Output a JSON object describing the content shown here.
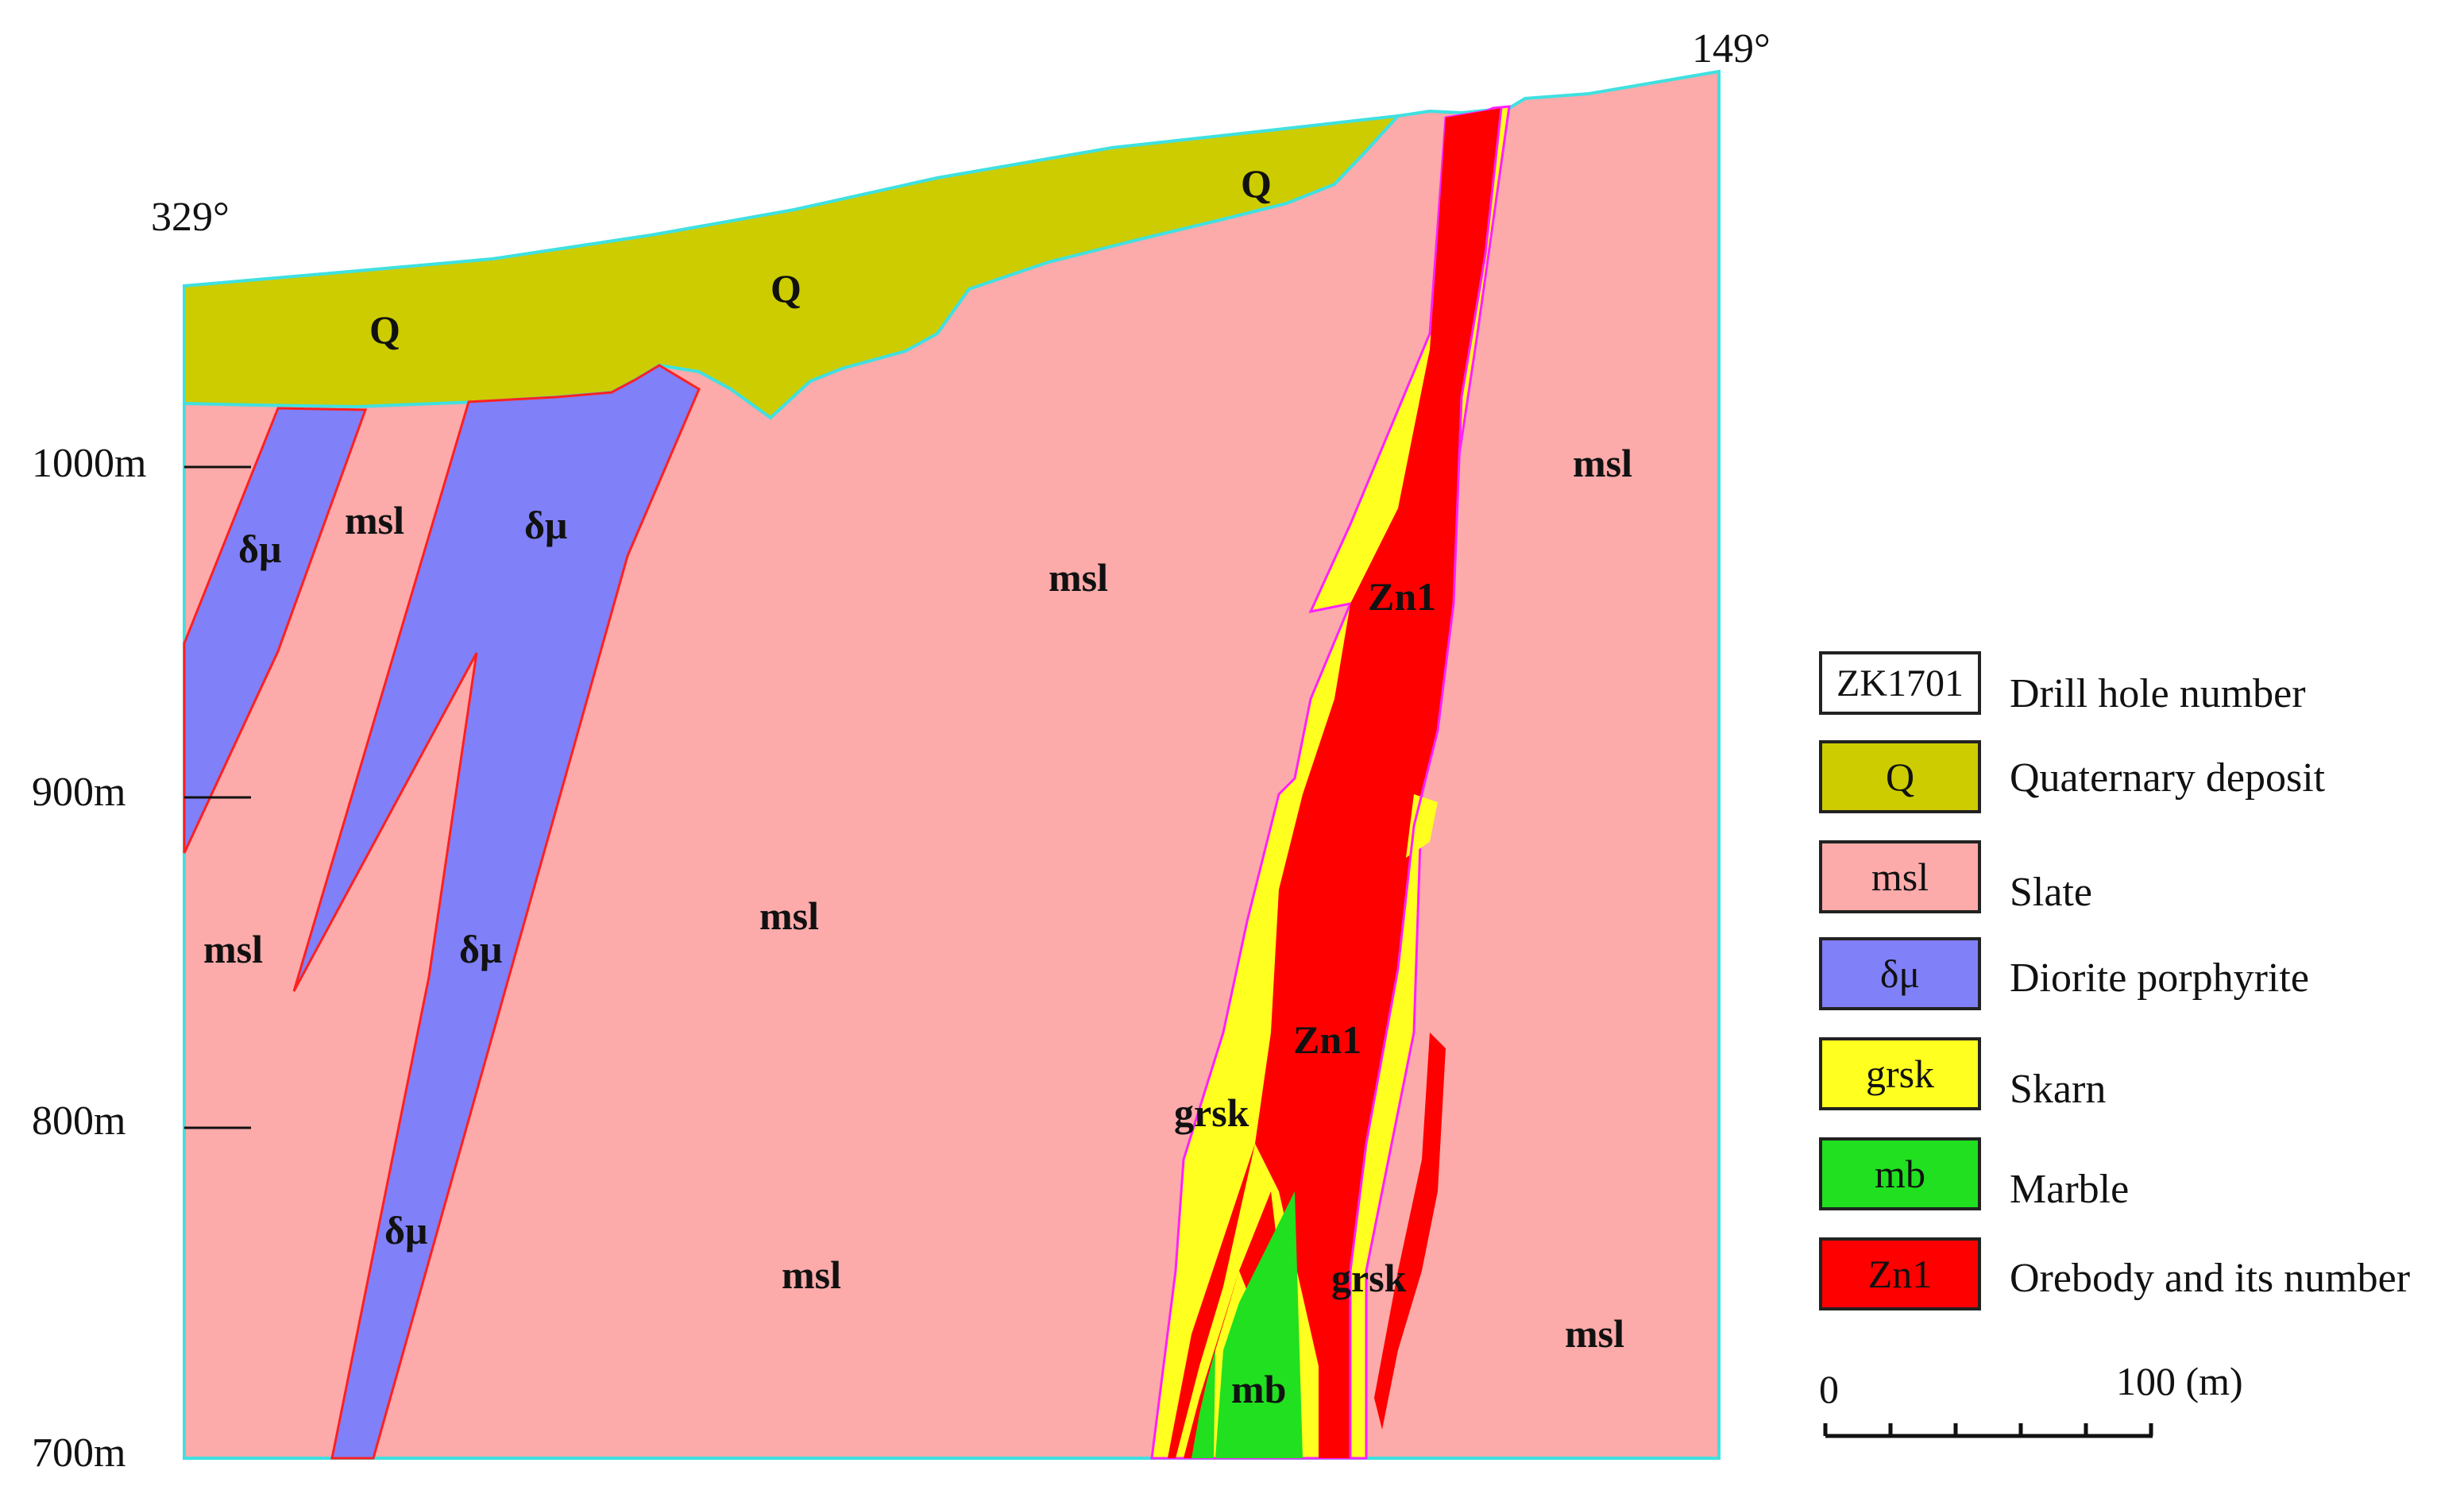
{
  "section": {
    "azimuth_left": "329°",
    "azimuth_right": "149°",
    "elevations": [
      "1000m",
      "900m",
      "800m",
      "700m"
    ],
    "unit_labels": {
      "q1": "Q",
      "q2": "Q",
      "q3": "Q",
      "dm1": "δμ",
      "dm2": "δμ",
      "dm3": "δμ",
      "dm4": "δμ",
      "msl1": "msl",
      "msl2": "msl",
      "msl3": "msl",
      "msl4": "msl",
      "msl5": "msl",
      "msl6": "msl",
      "msl7": "msl",
      "zn1a": "Zn1",
      "zn1b": "Zn1",
      "grsk1": "grsk",
      "grsk2": "grsk",
      "mb1": "mb"
    }
  },
  "colors": {
    "quaternary": "#cccc00",
    "slate": "#fcaaaa",
    "diorite": "#8080f8",
    "skarn": "#ffff20",
    "marble": "#20e020",
    "orebody": "#ff0000",
    "drill_hole": "#ffffff"
  },
  "legend": [
    {
      "code": "ZK1701",
      "text": "Drill hole number",
      "color_key": "drill_hole"
    },
    {
      "code": "Q",
      "text": "Quaternary deposit",
      "color_key": "quaternary"
    },
    {
      "code": "msl",
      "text": "Slate",
      "color_key": "slate"
    },
    {
      "code": "δμ",
      "text": "Diorite porphyrite",
      "color_key": "diorite"
    },
    {
      "code": "grsk",
      "text": "Skarn",
      "color_key": "skarn"
    },
    {
      "code": "mb",
      "text": "Marble",
      "color_key": "marble"
    },
    {
      "code": "Zn1",
      "text": "Orebody and its number",
      "color_key": "orebody"
    }
  ],
  "scale_bar": {
    "start_label": "0",
    "end_label": "100 (m)"
  }
}
